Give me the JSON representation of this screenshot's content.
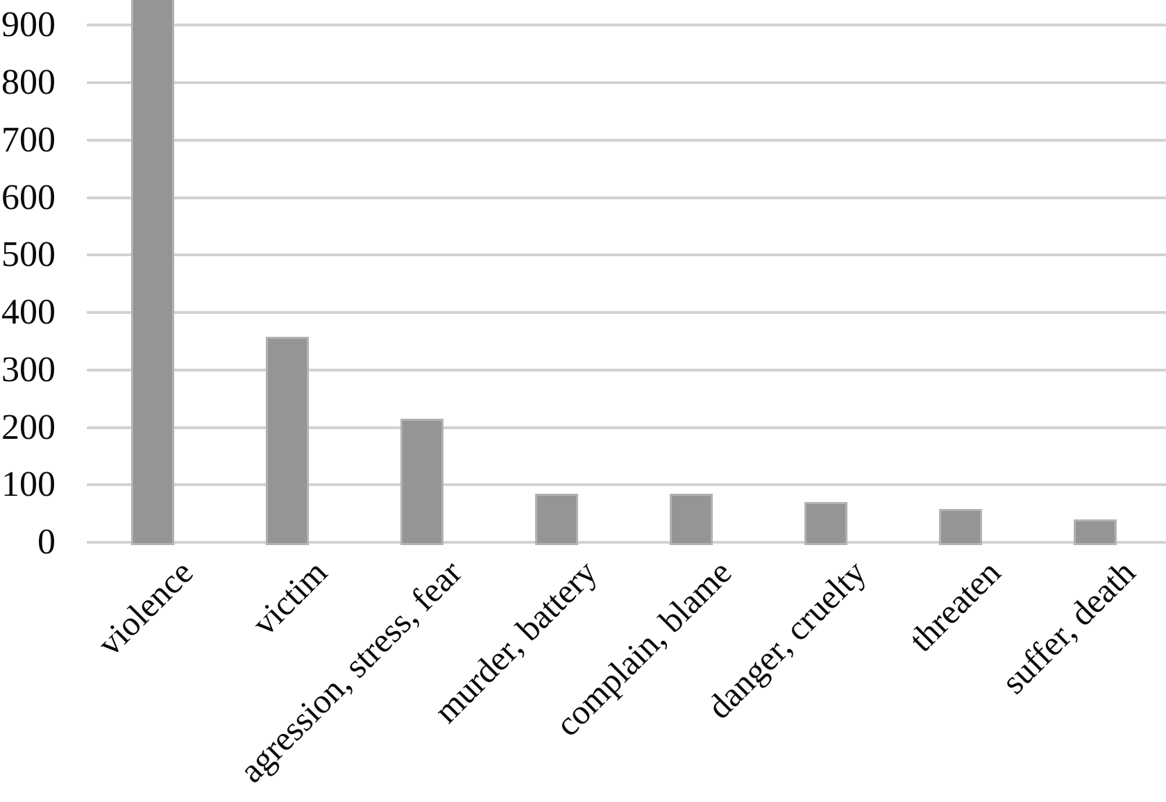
{
  "chart_data": {
    "type": "bar",
    "title": "",
    "subtitle": "",
    "categories": [
      "violence",
      "victim",
      "agression, stress, fear",
      "murder, battery",
      "complain, blame",
      "danger, cruelty",
      "threaten",
      "suffer, death"
    ],
    "values": [
      950,
      358,
      215,
      85,
      85,
      70,
      58,
      40
    ],
    "clipped_bars": [
      "violence"
    ],
    "clip_note": "tallest bar (violence) runs past the cropped top edge of the image; value estimated >= 945",
    "xlabel": "",
    "ylabel": "",
    "ylim": [
      0,
      945
    ],
    "yticks": [
      0,
      100,
      200,
      300,
      400,
      500,
      600,
      700,
      800,
      900
    ],
    "grid": "horizontal gridlines on",
    "legend": "none",
    "x_label_rotation_deg": -45,
    "colors": {
      "bar_fill": "#959595",
      "bar_edge": "#b2b2b2",
      "gridline": "#d2d2d2",
      "tick_text": "#0a0a0a",
      "background": "#ffffff"
    }
  }
}
